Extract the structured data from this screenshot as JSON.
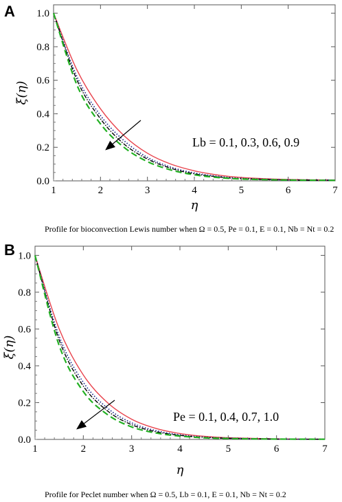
{
  "panels": [
    {
      "letter": "A",
      "caption": "Profile for bioconvection Lewis number when Ω = 0.5, Pe = 0.1, E = 0.1, Nb = Nt = 0.2",
      "annotation": "Lb = 0.1, 0.3, 0.6, 0.9"
    },
    {
      "letter": "B",
      "caption": "Profile for Peclet number when Ω = 0.5, Lb = 0.1, E = 0.1, Nb = Nt = 0.2",
      "annotation": "Pe = 0.1, 0.4, 0.7, 1.0"
    }
  ],
  "chart_data": [
    {
      "type": "line",
      "title": "",
      "xlabel": "η",
      "ylabel": "ξ(η)",
      "xlim": [
        1,
        7
      ],
      "ylim": [
        0,
        1.05
      ],
      "xticks": [
        1,
        2,
        3,
        4,
        5,
        6,
        7
      ],
      "yticks": [
        0.0,
        0.2,
        0.4,
        0.6,
        0.8,
        1.0
      ],
      "grid": false,
      "x": [
        1,
        1.5,
        2,
        2.5,
        3,
        3.5,
        4,
        4.5,
        5,
        6,
        7
      ],
      "series": [
        {
          "color": "#e8424c",
          "style": "solid",
          "values": [
            1.0,
            0.66,
            0.43,
            0.27,
            0.165,
            0.1,
            0.06,
            0.035,
            0.02,
            0.008,
            0.005
          ]
        },
        {
          "color": "#1f2a8c",
          "style": "dotted",
          "values": [
            1.0,
            0.62,
            0.39,
            0.24,
            0.14,
            0.082,
            0.047,
            0.027,
            0.015,
            0.006,
            0.004
          ]
        },
        {
          "color": "#000000",
          "style": "dashdot",
          "values": [
            1.0,
            0.6,
            0.37,
            0.22,
            0.13,
            0.075,
            0.042,
            0.024,
            0.013,
            0.005,
            0.004
          ]
        },
        {
          "color": "#22b022",
          "style": "dashed",
          "values": [
            1.0,
            0.57,
            0.34,
            0.2,
            0.115,
            0.065,
            0.036,
            0.02,
            0.011,
            0.005,
            0.003
          ]
        }
      ]
    },
    {
      "type": "line",
      "title": "",
      "xlabel": "η",
      "ylabel": "ξ(η)",
      "xlim": [
        1,
        7
      ],
      "ylim": [
        0,
        1.05
      ],
      "xticks": [
        1,
        2,
        3,
        4,
        5,
        6,
        7
      ],
      "yticks": [
        0.0,
        0.2,
        0.4,
        0.6,
        0.8,
        1.0
      ],
      "grid": false,
      "x": [
        1,
        1.5,
        2,
        2.5,
        3,
        3.5,
        4,
        4.5,
        5,
        6,
        7
      ],
      "series": [
        {
          "color": "#e8424c",
          "style": "solid",
          "values": [
            1.0,
            0.6,
            0.35,
            0.2,
            0.11,
            0.06,
            0.032,
            0.017,
            0.009,
            0.003,
            0.001
          ]
        },
        {
          "color": "#1f2a8c",
          "style": "dotted",
          "values": [
            1.0,
            0.56,
            0.31,
            0.17,
            0.09,
            0.048,
            0.025,
            0.013,
            0.007,
            0.002,
            0.001
          ]
        },
        {
          "color": "#000000",
          "style": "dashdot",
          "values": [
            1.0,
            0.54,
            0.29,
            0.155,
            0.08,
            0.042,
            0.022,
            0.011,
            0.006,
            0.002,
            0.001
          ]
        },
        {
          "color": "#22b022",
          "style": "dashed",
          "values": [
            1.0,
            0.51,
            0.26,
            0.135,
            0.068,
            0.035,
            0.018,
            0.009,
            0.005,
            0.002,
            0.001
          ]
        }
      ]
    }
  ]
}
